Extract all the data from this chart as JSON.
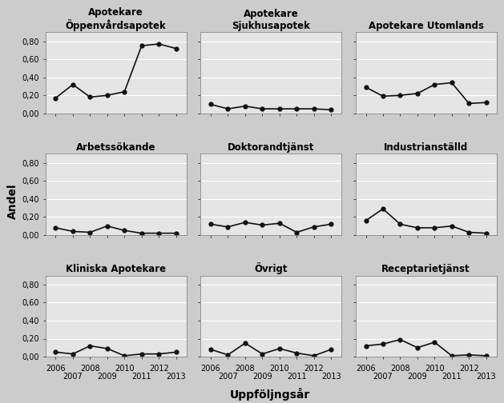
{
  "x_years": [
    2006,
    2007,
    2008,
    2009,
    2010,
    2011,
    2012,
    2013
  ],
  "subplots": [
    {
      "title": "Apotekare\nÖppenvårdsapotek",
      "values": [
        0.17,
        0.32,
        0.18,
        0.2,
        0.24,
        0.75,
        0.77,
        0.72
      ]
    },
    {
      "title": "Apotekare\nSjukhusapotek",
      "values": [
        0.1,
        0.05,
        0.08,
        0.05,
        0.05,
        0.05,
        0.05,
        0.04
      ]
    },
    {
      "title": "Apotekare Utomlands",
      "values": [
        0.29,
        0.19,
        0.2,
        0.22,
        0.32,
        0.34,
        0.11,
        0.12
      ]
    },
    {
      "title": "Arbetssökande",
      "values": [
        0.08,
        0.04,
        0.03,
        0.1,
        0.05,
        0.02,
        0.02,
        0.02
      ]
    },
    {
      "title": "Doktorandtjänst",
      "values": [
        0.12,
        0.09,
        0.14,
        0.11,
        0.13,
        0.03,
        0.09,
        0.12
      ]
    },
    {
      "title": "Industrianställd",
      "values": [
        0.16,
        0.29,
        0.12,
        0.08,
        0.08,
        0.1,
        0.03,
        0.02
      ]
    },
    {
      "title": "Kliniska Apotekare",
      "values": [
        0.05,
        0.03,
        0.12,
        0.09,
        0.01,
        0.03,
        0.03,
        0.05
      ]
    },
    {
      "title": "Övrigt",
      "values": [
        0.08,
        0.02,
        0.15,
        0.03,
        0.09,
        0.04,
        0.01,
        0.08
      ]
    },
    {
      "title": "Receptarietjänst",
      "values": [
        0.12,
        0.14,
        0.19,
        0.1,
        0.16,
        0.01,
        0.02,
        0.01
      ]
    }
  ],
  "ylim_min": 0.0,
  "ylim_max": 0.9,
  "yticks": [
    0.0,
    0.2,
    0.4,
    0.6,
    0.8
  ],
  "ytick_labels": [
    "0,00",
    "0,20",
    "0,40",
    "0,60",
    "0,80"
  ],
  "ylabel": "Andel",
  "xlabel": "Uppföljngsår",
  "bg_color": "#e5e5e5",
  "fig_bg_color": "#cccccc",
  "line_color": "#111111",
  "marker": "o",
  "marker_size": 3.5,
  "linewidth": 1.2,
  "title_fontsize": 8.5,
  "tick_fontsize": 7,
  "label_fontsize": 10
}
